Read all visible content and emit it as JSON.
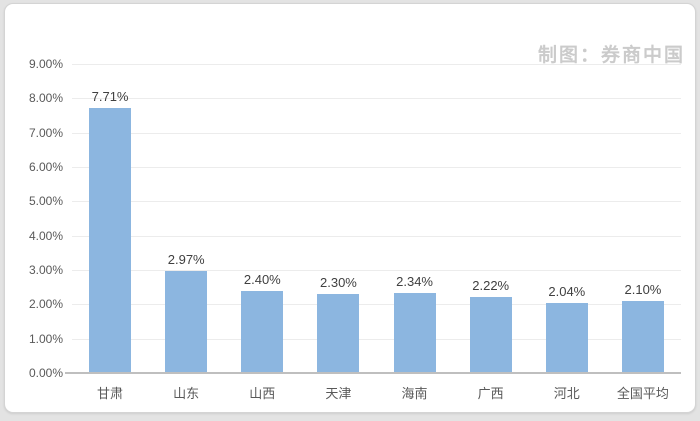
{
  "attribution": "制图：券商中国",
  "colors": {
    "bar": "#8cb6e0",
    "gridline": "#ececec",
    "axis_line": "#bfbfbf",
    "tick_text": "#595959",
    "value_text": "#404040",
    "attribution_text": "#cbcbcb",
    "card_background": "#ffffff",
    "page_background": "#e3e3e3"
  },
  "chart_data": {
    "type": "bar",
    "title": "",
    "xlabel": "",
    "ylabel": "",
    "categories": [
      "甘肃",
      "山东",
      "山西",
      "天津",
      "海南",
      "广西",
      "河北",
      "全国平均"
    ],
    "values": [
      7.71,
      2.97,
      2.4,
      2.3,
      2.34,
      2.22,
      2.04,
      2.1
    ],
    "value_labels": [
      "7.71%",
      "2.97%",
      "2.40%",
      "2.30%",
      "2.34%",
      "2.22%",
      "2.04%",
      "2.10%"
    ],
    "ylim": [
      0,
      9
    ],
    "ytick_step": 1,
    "ytick_labels": [
      "0.00%",
      "1.00%",
      "2.00%",
      "3.00%",
      "4.00%",
      "5.00%",
      "6.00%",
      "7.00%",
      "8.00%",
      "9.00%"
    ],
    "grid": true,
    "legend": false,
    "bar_color": "#8cb6e0"
  }
}
